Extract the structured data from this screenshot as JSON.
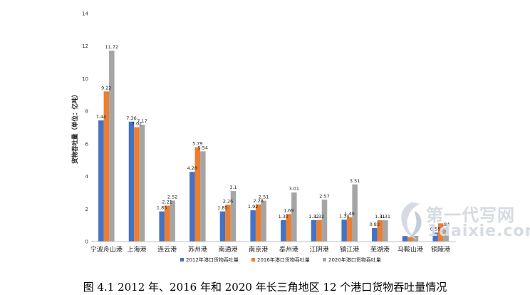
{
  "chart_data": {
    "type": "bar",
    "title": "",
    "xlabel": "",
    "ylabel": "货物吞吐量（单位：亿吨）",
    "ylim": [
      0,
      14
    ],
    "yticks": [
      0,
      2,
      4,
      6,
      8,
      10,
      12,
      14
    ],
    "grid": false,
    "legend_position": "bottom",
    "categories": [
      "宁波舟山港",
      "上海港",
      "连云港",
      "苏州港",
      "南通港",
      "南京港",
      "泰州港",
      "江阴港",
      "镇江港",
      "芜湖港",
      "马鞍山港",
      "铜陵港"
    ],
    "series": [
      {
        "name": "2012年港口货物吞吐量",
        "color": "#4472c4",
        "values": [
          7.44,
          7.36,
          1.85,
          4.28,
          1.85,
          1.92,
          1.32,
          1.32,
          1.34,
          0.83,
          0.34,
          0.55
        ]
      },
      {
        "name": "2016年港口货物吞吐量",
        "color": "#ed7d31",
        "values": [
          9.22,
          7.02,
          2.21,
          5.79,
          2.26,
          2.28,
          1.69,
          1.32,
          1.49,
          1.31,
          0.28,
          1.12
        ]
      },
      {
        "name": "2020年港口货物吞吐量",
        "color": "#a5a5a5",
        "values": [
          11.72,
          7.17,
          2.52,
          5.54,
          3.1,
          2.51,
          3.01,
          2.57,
          3.51,
          1.31,
          0.35,
          0.84
        ]
      }
    ],
    "data_labels": [
      [
        "7.44",
        "7.36",
        "1.85",
        "4.28",
        "1.85",
        "1.92",
        "1.32",
        "1.32",
        "1.34",
        "0.83",
        "",
        "0.55"
      ],
      [
        "9.22",
        "7.02",
        "2.21",
        "5.79",
        "2.26",
        "2.28",
        "1.69",
        "1.32",
        "1.49",
        "1.31",
        "",
        ""
      ],
      [
        "11.72",
        "7.17",
        "2.52",
        "5.54",
        "3.1",
        "2.51",
        "3.01",
        "2.57",
        "3.51",
        "1.31",
        "",
        ".84"
      ]
    ]
  },
  "caption": "图 4.1 2012 年、2016 年和 2020 年长三角地区 12 个港口货物吞吐量情况",
  "watermark": {
    "line1": "第一代写网",
    "line2": "1daixie.com"
  }
}
